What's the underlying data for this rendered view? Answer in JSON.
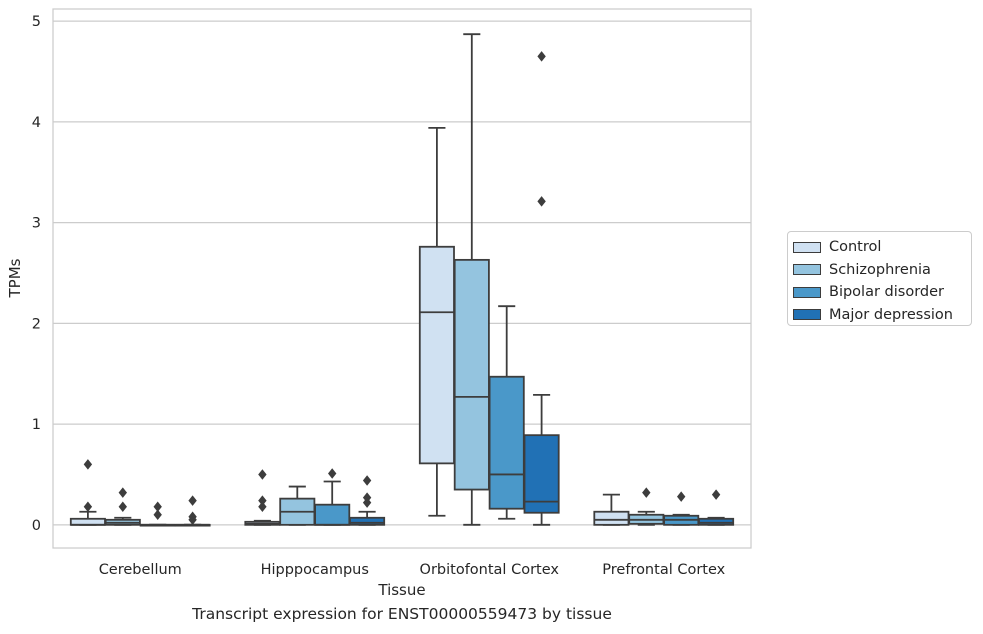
{
  "chart_data": {
    "type": "box",
    "title": "",
    "caption": "Transcript expression for ENST00000559473 by tissue",
    "xlabel": "Tissue",
    "ylabel": "TPMs",
    "ylim": [
      -0.23,
      5.12
    ],
    "yticks": [
      0,
      1,
      2,
      3,
      4,
      5
    ],
    "grid": "horizontal",
    "legend_position": "right",
    "categories": [
      "Cerebellum",
      "Hipppocampus",
      "Orbitofontal Cortex",
      "Prefrontal Cortex"
    ],
    "series": [
      {
        "name": "Control",
        "color": "#d0e1f2",
        "boxes": [
          {
            "q1": 0.0,
            "median": 0.0,
            "q3": 0.06,
            "whisker_low": 0.0,
            "whisker_high": 0.13,
            "outliers": [
              0.18,
              0.6
            ]
          },
          {
            "q1": 0.0,
            "median": 0.01,
            "q3": 0.03,
            "whisker_low": 0.0,
            "whisker_high": 0.04,
            "outliers": [
              0.18,
              0.24,
              0.5
            ]
          },
          {
            "q1": 0.61,
            "median": 2.11,
            "q3": 2.76,
            "whisker_low": 0.09,
            "whisker_high": 3.94,
            "outliers": []
          },
          {
            "q1": 0.0,
            "median": 0.05,
            "q3": 0.13,
            "whisker_low": 0.0,
            "whisker_high": 0.3,
            "outliers": []
          }
        ]
      },
      {
        "name": "Schizophrenia",
        "color": "#94c4df",
        "boxes": [
          {
            "q1": 0.0,
            "median": 0.02,
            "q3": 0.05,
            "whisker_low": 0.0,
            "whisker_high": 0.07,
            "outliers": [
              0.18,
              0.32
            ]
          },
          {
            "q1": 0.0,
            "median": 0.13,
            "q3": 0.26,
            "whisker_low": 0.0,
            "whisker_high": 0.38,
            "outliers": []
          },
          {
            "q1": 0.35,
            "median": 1.27,
            "q3": 2.63,
            "whisker_low": 0.0,
            "whisker_high": 4.87,
            "outliers": []
          },
          {
            "q1": 0.01,
            "median": 0.05,
            "q3": 0.1,
            "whisker_low": 0.0,
            "whisker_high": 0.13,
            "outliers": [
              0.32
            ]
          }
        ]
      },
      {
        "name": "Bipolar disorder",
        "color": "#4a98c9",
        "boxes": [
          {
            "q1": 0.0,
            "median": 0.0,
            "q3": 0.0,
            "whisker_low": 0.0,
            "whisker_high": 0.0,
            "outliers": [
              0.1,
              0.18
            ]
          },
          {
            "q1": 0.0,
            "median": 0.0,
            "q3": 0.2,
            "whisker_low": 0.0,
            "whisker_high": 0.43,
            "outliers": [
              0.51
            ]
          },
          {
            "q1": 0.16,
            "median": 0.5,
            "q3": 1.47,
            "whisker_low": 0.06,
            "whisker_high": 2.17,
            "outliers": []
          },
          {
            "q1": 0.0,
            "median": 0.05,
            "q3": 0.09,
            "whisker_low": 0.0,
            "whisker_high": 0.1,
            "outliers": [
              0.28
            ]
          }
        ]
      },
      {
        "name": "Major depression",
        "color": "#2171b5",
        "boxes": [
          {
            "q1": 0.0,
            "median": 0.0,
            "q3": 0.0,
            "whisker_low": 0.0,
            "whisker_high": 0.0,
            "outliers": [
              0.05,
              0.08,
              0.24
            ]
          },
          {
            "q1": 0.0,
            "median": 0.02,
            "q3": 0.07,
            "whisker_low": 0.0,
            "whisker_high": 0.13,
            "outliers": [
              0.22,
              0.27,
              0.44
            ]
          },
          {
            "q1": 0.12,
            "median": 0.23,
            "q3": 0.89,
            "whisker_low": 0.0,
            "whisker_high": 1.29,
            "outliers": [
              3.21,
              4.65
            ]
          },
          {
            "q1": 0.0,
            "median": 0.02,
            "q3": 0.06,
            "whisker_low": 0.0,
            "whisker_high": 0.07,
            "outliers": [
              0.3
            ]
          }
        ]
      }
    ]
  }
}
